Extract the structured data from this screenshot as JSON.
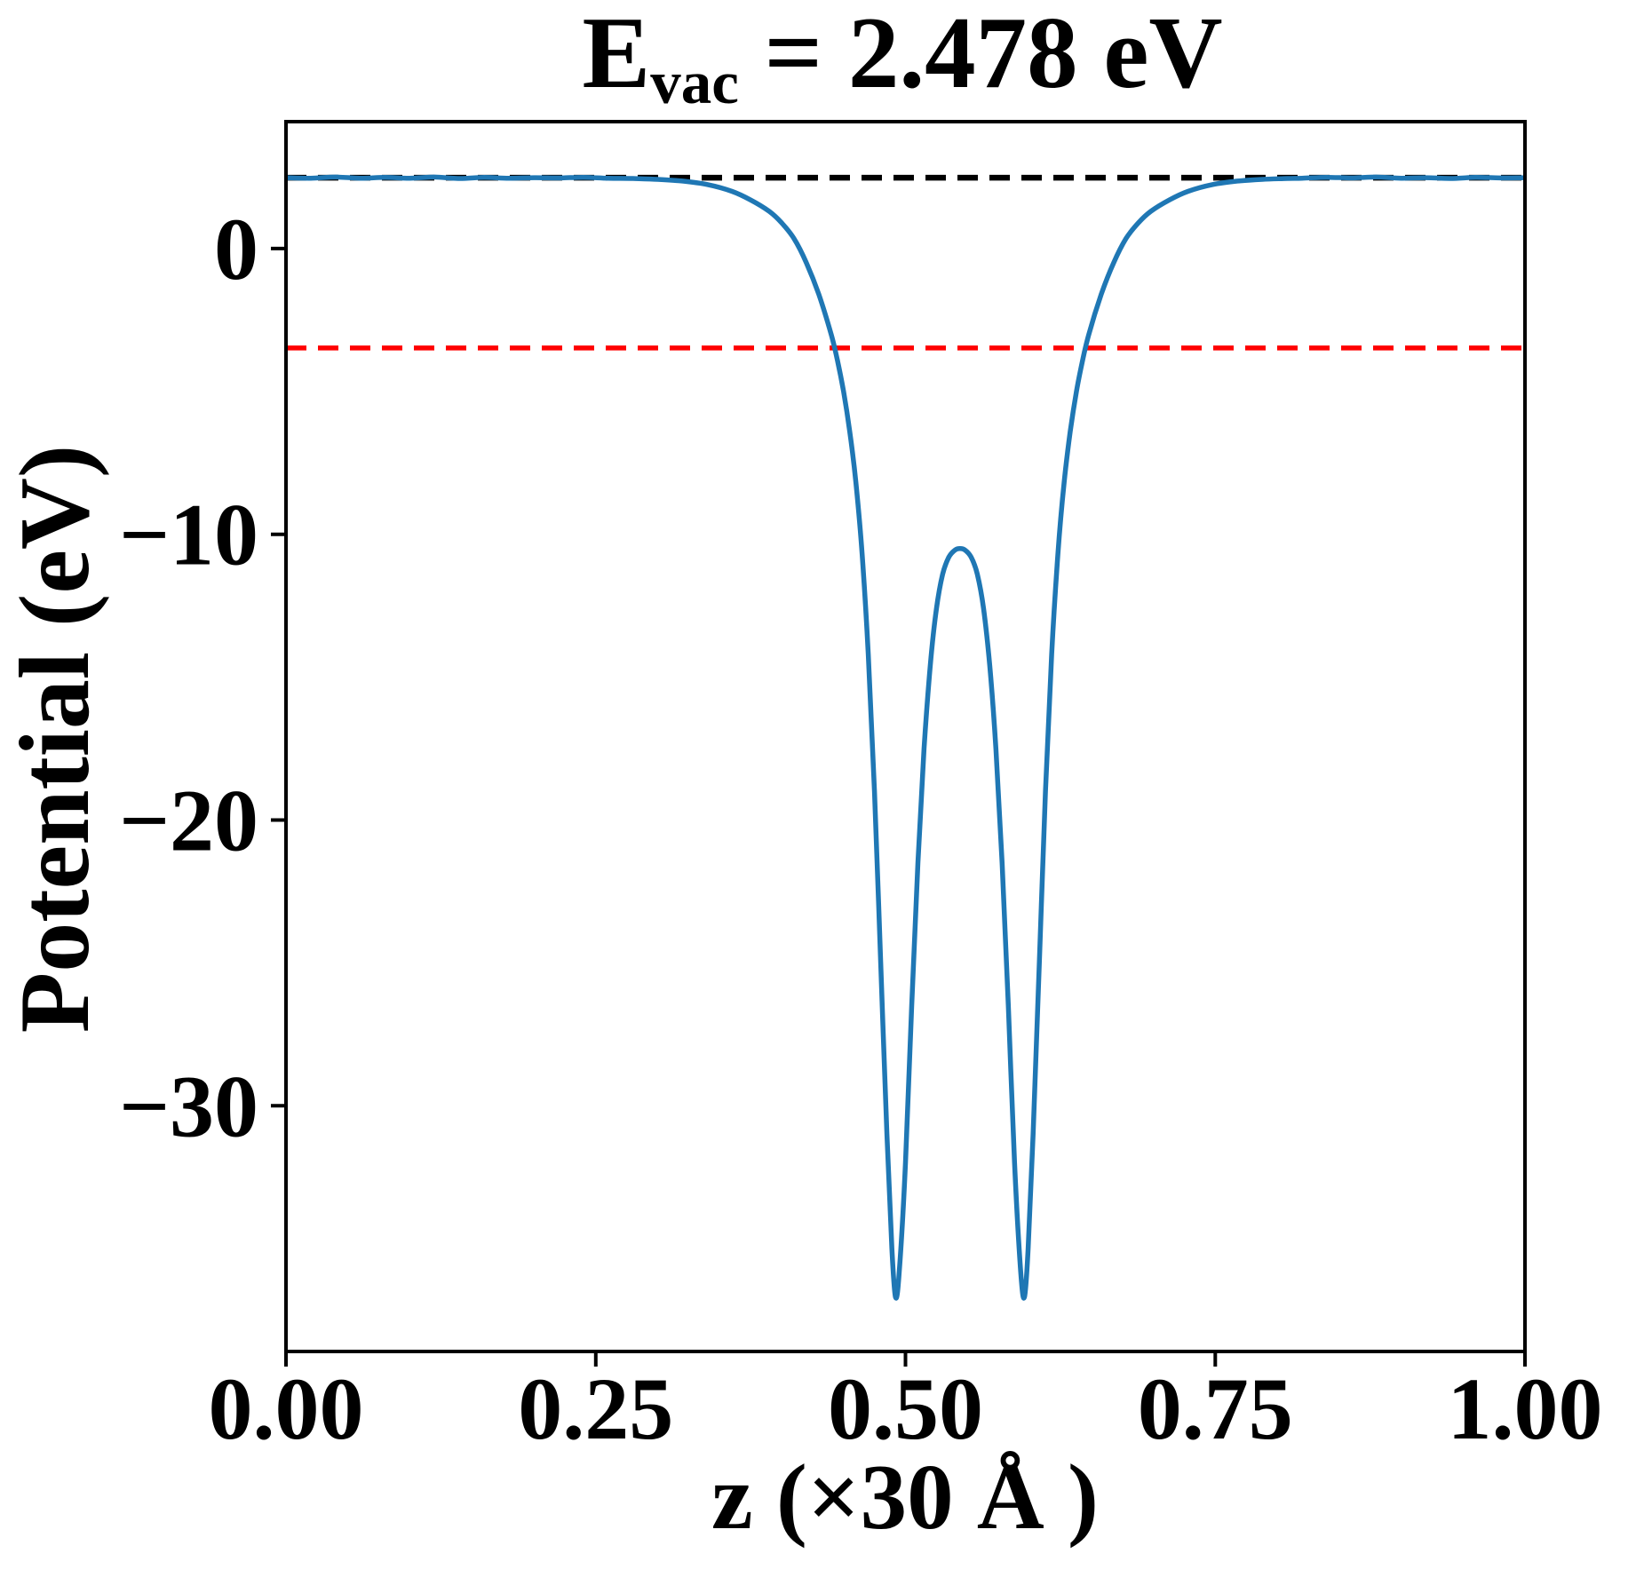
{
  "title": {
    "symbol": "E",
    "subscript": "vac",
    "rest": " = 2.478 eV",
    "full": "E_vac = 2.478 eV"
  },
  "axes": {
    "xlabel": "z (×30 Å )",
    "ylabel": "Potential (eV)",
    "x_ticks": [
      {
        "value": 0.0,
        "label": "0.00"
      },
      {
        "value": 0.25,
        "label": "0.25"
      },
      {
        "value": 0.5,
        "label": "0.50"
      },
      {
        "value": 0.75,
        "label": "0.75"
      },
      {
        "value": 1.0,
        "label": "1.00"
      }
    ],
    "y_ticks": [
      {
        "value": 0,
        "label": "0"
      },
      {
        "value": -10,
        "label": "−10"
      },
      {
        "value": -20,
        "label": "−20"
      },
      {
        "value": -30,
        "label": "−30"
      }
    ]
  },
  "colors": {
    "curve": "#1f77b4",
    "vacuum_line": "#000000",
    "reference_line": "#ff0000",
    "text": "#000000",
    "spine": "#000000"
  },
  "chart_data": {
    "type": "line",
    "title": "E_vac = 2.478 eV",
    "xlabel": "z (×30 Å )",
    "ylabel": "Potential (eV)",
    "xlim": [
      0.0,
      1.0
    ],
    "ylim": [
      -38.6,
      4.44
    ],
    "grid": false,
    "legend": false,
    "annotations": {
      "E_vac_eV": 2.478
    },
    "series": [
      {
        "name": "planar-averaged potential",
        "type": "line",
        "style": "solid",
        "color": "#1f77b4",
        "width": 5.5,
        "points": [
          [
            0.0,
            2.48
          ],
          [
            0.02,
            2.46
          ],
          [
            0.04,
            2.5
          ],
          [
            0.06,
            2.46
          ],
          [
            0.08,
            2.49
          ],
          [
            0.1,
            2.46
          ],
          [
            0.12,
            2.5
          ],
          [
            0.14,
            2.45
          ],
          [
            0.16,
            2.49
          ],
          [
            0.18,
            2.46
          ],
          [
            0.2,
            2.48
          ],
          [
            0.22,
            2.47
          ],
          [
            0.24,
            2.49
          ],
          [
            0.26,
            2.46
          ],
          [
            0.28,
            2.45
          ],
          [
            0.3,
            2.42
          ],
          [
            0.32,
            2.36
          ],
          [
            0.34,
            2.24
          ],
          [
            0.36,
            2.0
          ],
          [
            0.375,
            1.7
          ],
          [
            0.39,
            1.3
          ],
          [
            0.4,
            0.9
          ],
          [
            0.41,
            0.35
          ],
          [
            0.42,
            -0.5
          ],
          [
            0.43,
            -1.6
          ],
          [
            0.44,
            -3.0
          ],
          [
            0.445,
            -3.9
          ],
          [
            0.45,
            -5.0
          ],
          [
            0.455,
            -6.4
          ],
          [
            0.46,
            -8.2
          ],
          [
            0.465,
            -10.7
          ],
          [
            0.47,
            -14.2
          ],
          [
            0.475,
            -19.0
          ],
          [
            0.48,
            -25.0
          ],
          [
            0.485,
            -31.0
          ],
          [
            0.489,
            -35.0
          ],
          [
            0.492,
            -36.7
          ],
          [
            0.495,
            -35.8
          ],
          [
            0.5,
            -32.0
          ],
          [
            0.505,
            -26.5
          ],
          [
            0.51,
            -21.5
          ],
          [
            0.515,
            -17.5
          ],
          [
            0.52,
            -14.6
          ],
          [
            0.525,
            -12.6
          ],
          [
            0.53,
            -11.4
          ],
          [
            0.535,
            -10.8
          ],
          [
            0.54,
            -10.55
          ],
          [
            0.544,
            -10.5
          ],
          [
            0.548,
            -10.55
          ],
          [
            0.553,
            -10.8
          ],
          [
            0.558,
            -11.4
          ],
          [
            0.563,
            -12.6
          ],
          [
            0.568,
            -14.6
          ],
          [
            0.573,
            -17.5
          ],
          [
            0.578,
            -21.5
          ],
          [
            0.583,
            -26.5
          ],
          [
            0.588,
            -32.0
          ],
          [
            0.593,
            -35.8
          ],
          [
            0.596,
            -36.7
          ],
          [
            0.599,
            -35.0
          ],
          [
            0.603,
            -31.0
          ],
          [
            0.608,
            -25.0
          ],
          [
            0.613,
            -19.0
          ],
          [
            0.618,
            -14.2
          ],
          [
            0.623,
            -10.7
          ],
          [
            0.628,
            -8.2
          ],
          [
            0.633,
            -6.4
          ],
          [
            0.638,
            -5.0
          ],
          [
            0.643,
            -3.9
          ],
          [
            0.648,
            -3.0
          ],
          [
            0.658,
            -1.6
          ],
          [
            0.668,
            -0.5
          ],
          [
            0.678,
            0.35
          ],
          [
            0.688,
            0.9
          ],
          [
            0.698,
            1.3
          ],
          [
            0.713,
            1.7
          ],
          [
            0.728,
            2.0
          ],
          [
            0.748,
            2.24
          ],
          [
            0.768,
            2.36
          ],
          [
            0.788,
            2.42
          ],
          [
            0.808,
            2.45
          ],
          [
            0.82,
            2.46
          ],
          [
            0.84,
            2.49
          ],
          [
            0.86,
            2.47
          ],
          [
            0.88,
            2.5
          ],
          [
            0.9,
            2.46
          ],
          [
            0.92,
            2.48
          ],
          [
            0.94,
            2.45
          ],
          [
            0.96,
            2.49
          ],
          [
            0.98,
            2.47
          ],
          [
            1.0,
            2.48
          ]
        ]
      },
      {
        "name": "vacuum level",
        "type": "hline",
        "style": "dashed",
        "color": "#000000",
        "width": 6.5,
        "y": 2.478
      },
      {
        "name": "reference level",
        "type": "hline",
        "style": "dashed",
        "color": "#ff0000",
        "width": 5.5,
        "y": -3.48
      }
    ]
  }
}
